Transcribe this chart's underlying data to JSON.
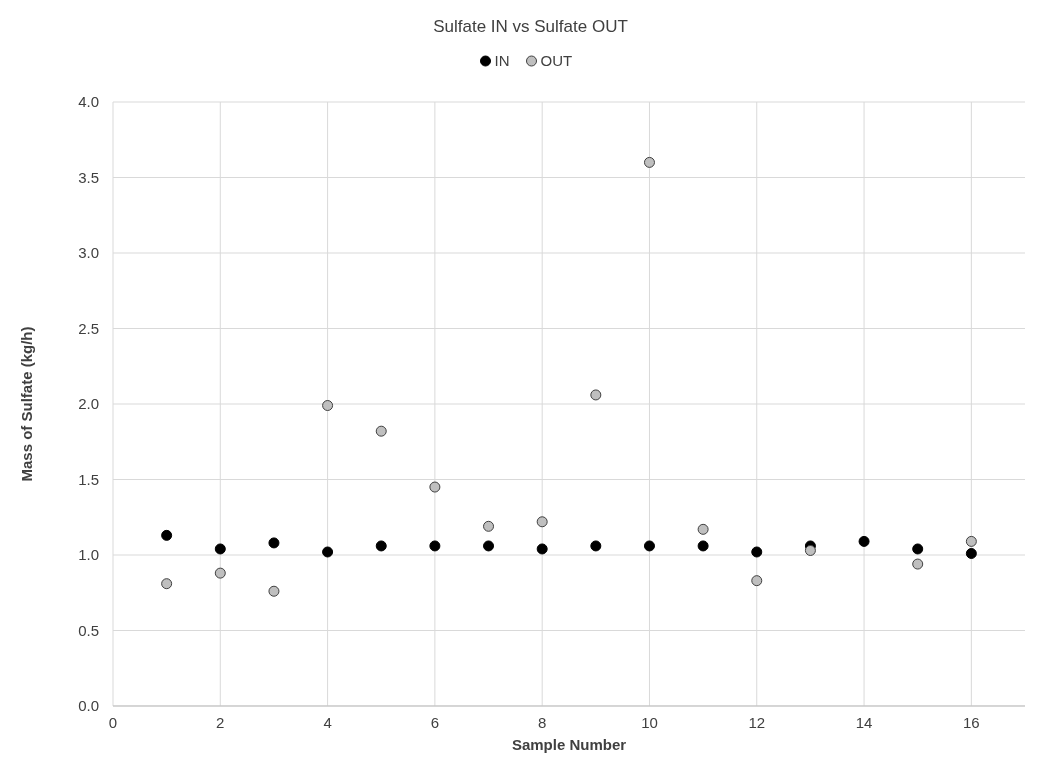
{
  "chart_data": {
    "type": "scatter",
    "title": "Sulfate IN vs Sulfate OUT",
    "xlabel": "Sample Number",
    "ylabel": "Mass of Sulfate (kg/h)",
    "x": [
      1,
      2,
      3,
      4,
      5,
      6,
      7,
      8,
      9,
      10,
      11,
      12,
      13,
      14,
      15,
      16
    ],
    "series": [
      {
        "name": "IN",
        "color": "#000000",
        "values": [
          1.13,
          1.04,
          1.08,
          1.02,
          1.06,
          1.06,
          1.06,
          1.04,
          1.06,
          1.06,
          1.06,
          1.02,
          1.06,
          1.09,
          1.04,
          1.01
        ]
      },
      {
        "name": "OUT",
        "color": "#bfbfbf",
        "values": [
          0.81,
          0.88,
          0.76,
          1.99,
          1.82,
          1.45,
          1.19,
          1.22,
          2.06,
          3.6,
          1.17,
          0.83,
          1.03,
          null,
          0.94,
          1.09
        ]
      }
    ],
    "xlim": [
      0,
      17
    ],
    "xticks": [
      0,
      2,
      4,
      6,
      8,
      10,
      12,
      14,
      16
    ],
    "ylim": [
      0,
      4
    ],
    "yticks": [
      {
        "value": 0,
        "label": "0.0"
      },
      {
        "value": 0.5,
        "label": "0.5"
      },
      {
        "value": 1,
        "label": "1.0"
      },
      {
        "value": 1.5,
        "label": "1.5"
      },
      {
        "value": 2,
        "label": "2.0"
      },
      {
        "value": 2.5,
        "label": "2.5"
      },
      {
        "value": 3,
        "label": "3.0"
      },
      {
        "value": 3.5,
        "label": "3.5"
      },
      {
        "value": 4,
        "label": "4.0"
      }
    ],
    "grid": true,
    "legend": "top",
    "marker": "circle"
  }
}
